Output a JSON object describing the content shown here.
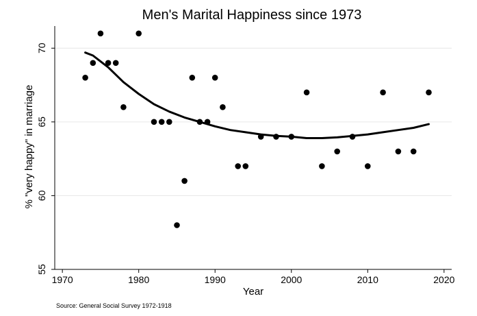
{
  "chart_data": {
    "type": "scatter",
    "title": "Men's Marital Happiness since 1973",
    "xlabel": "Year",
    "ylabel": "% \"very happy\" in marriage",
    "source": "Source: General Social Survey 1972-1918",
    "xlim": [
      1969,
      2021
    ],
    "ylim": [
      55,
      71.5
    ],
    "xticks": [
      1970,
      1980,
      1990,
      2000,
      2010,
      2020
    ],
    "yticks": [
      55,
      60,
      65,
      70
    ],
    "grid": "horizontal",
    "series": [
      {
        "kind": "points",
        "x": [
          1973,
          1974,
          1975,
          1976,
          1977,
          1978,
          1980,
          1982,
          1983,
          1984,
          1985,
          1986,
          1987,
          1988,
          1989,
          1990,
          1991,
          1993,
          1994,
          1996,
          1998,
          2000,
          2002,
          2004,
          2006,
          2008,
          2010,
          2012,
          2014,
          2016,
          2018
        ],
        "y": [
          68,
          69,
          71,
          69,
          69,
          66,
          71,
          65,
          65,
          65,
          58,
          61,
          68,
          65,
          65,
          68,
          66,
          62,
          62,
          64,
          64,
          64,
          67,
          62,
          63,
          64,
          62,
          67,
          63,
          63,
          67
        ]
      },
      {
        "kind": "fit-line",
        "x": [
          1973,
          1974,
          1975,
          1976,
          1978,
          1980,
          1982,
          1984,
          1986,
          1988,
          1990,
          1992,
          1994,
          1996,
          1998,
          2000,
          2002,
          2004,
          2006,
          2008,
          2010,
          2012,
          2014,
          2016,
          2018
        ],
        "y": [
          69.7,
          69.5,
          69.1,
          68.7,
          67.7,
          66.9,
          66.2,
          65.7,
          65.3,
          65.0,
          64.7,
          64.45,
          64.3,
          64.15,
          64.05,
          64.0,
          63.9,
          63.9,
          63.95,
          64.05,
          64.15,
          64.3,
          64.45,
          64.6,
          64.85
        ]
      }
    ]
  }
}
